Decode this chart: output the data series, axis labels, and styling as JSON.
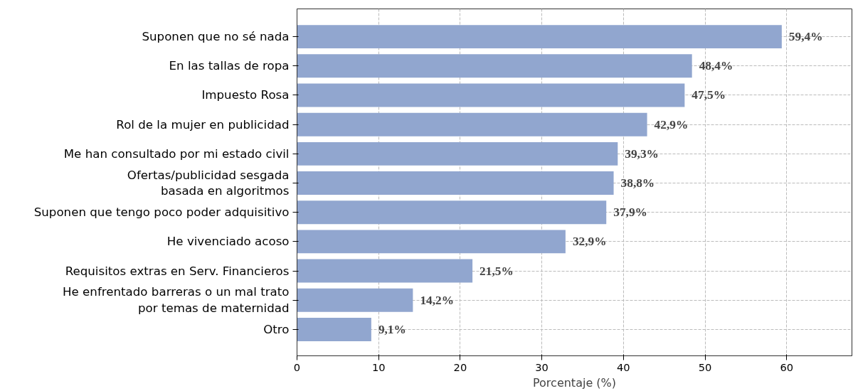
{
  "chart_data": {
    "type": "bar",
    "orientation": "horizontal",
    "xlabel": "Porcentaje (%)",
    "categories": [
      "Suponen que no sé nada",
      "En las tallas de ropa",
      "Impuesto Rosa",
      "Rol de la mujer en publicidad",
      "Me han consultado por mi estado civil",
      "Ofertas/publicidad sesgada\nbasada en algoritmos",
      "Suponen que tengo poco poder adquisitivo",
      "He vivenciado acoso",
      "Requisitos extras en Serv. Financieros",
      "He enfrentado barreras o un mal trato\npor temas de maternidad",
      "Otro"
    ],
    "values": [
      59.4,
      48.4,
      47.5,
      42.9,
      39.3,
      38.8,
      37.9,
      32.9,
      21.5,
      14.2,
      9.1
    ],
    "value_labels": [
      "59,4%",
      "48,4%",
      "47,5%",
      "42,9%",
      "39,3%",
      "38,8%",
      "37,9%",
      "32,9%",
      "21,5%",
      "14,2%",
      "9,1%"
    ],
    "color": "#91a6cf",
    "xlim": [
      0,
      68
    ],
    "xticks": [
      0,
      10,
      20,
      30,
      40,
      50,
      60
    ],
    "grid": true
  }
}
